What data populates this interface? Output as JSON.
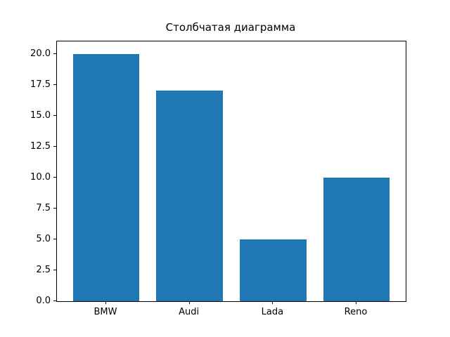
{
  "chart_data": {
    "type": "bar",
    "title": "Столбчатая диаграмма",
    "categories": [
      "BMW",
      "Audi",
      "Lada",
      "Reno"
    ],
    "values": [
      20,
      17,
      5,
      10
    ],
    "bar_color": "#1f77b4",
    "axis_color": "#000000",
    "background_color": "#ffffff",
    "xlabel": "",
    "ylabel": "",
    "ylim": [
      0,
      21
    ],
    "yticks": [
      0.0,
      2.5,
      5.0,
      7.5,
      10.0,
      12.5,
      15.0,
      17.5,
      20.0
    ],
    "ytick_label_format": "one_decimal",
    "grid": false,
    "legend_position": "none"
  }
}
